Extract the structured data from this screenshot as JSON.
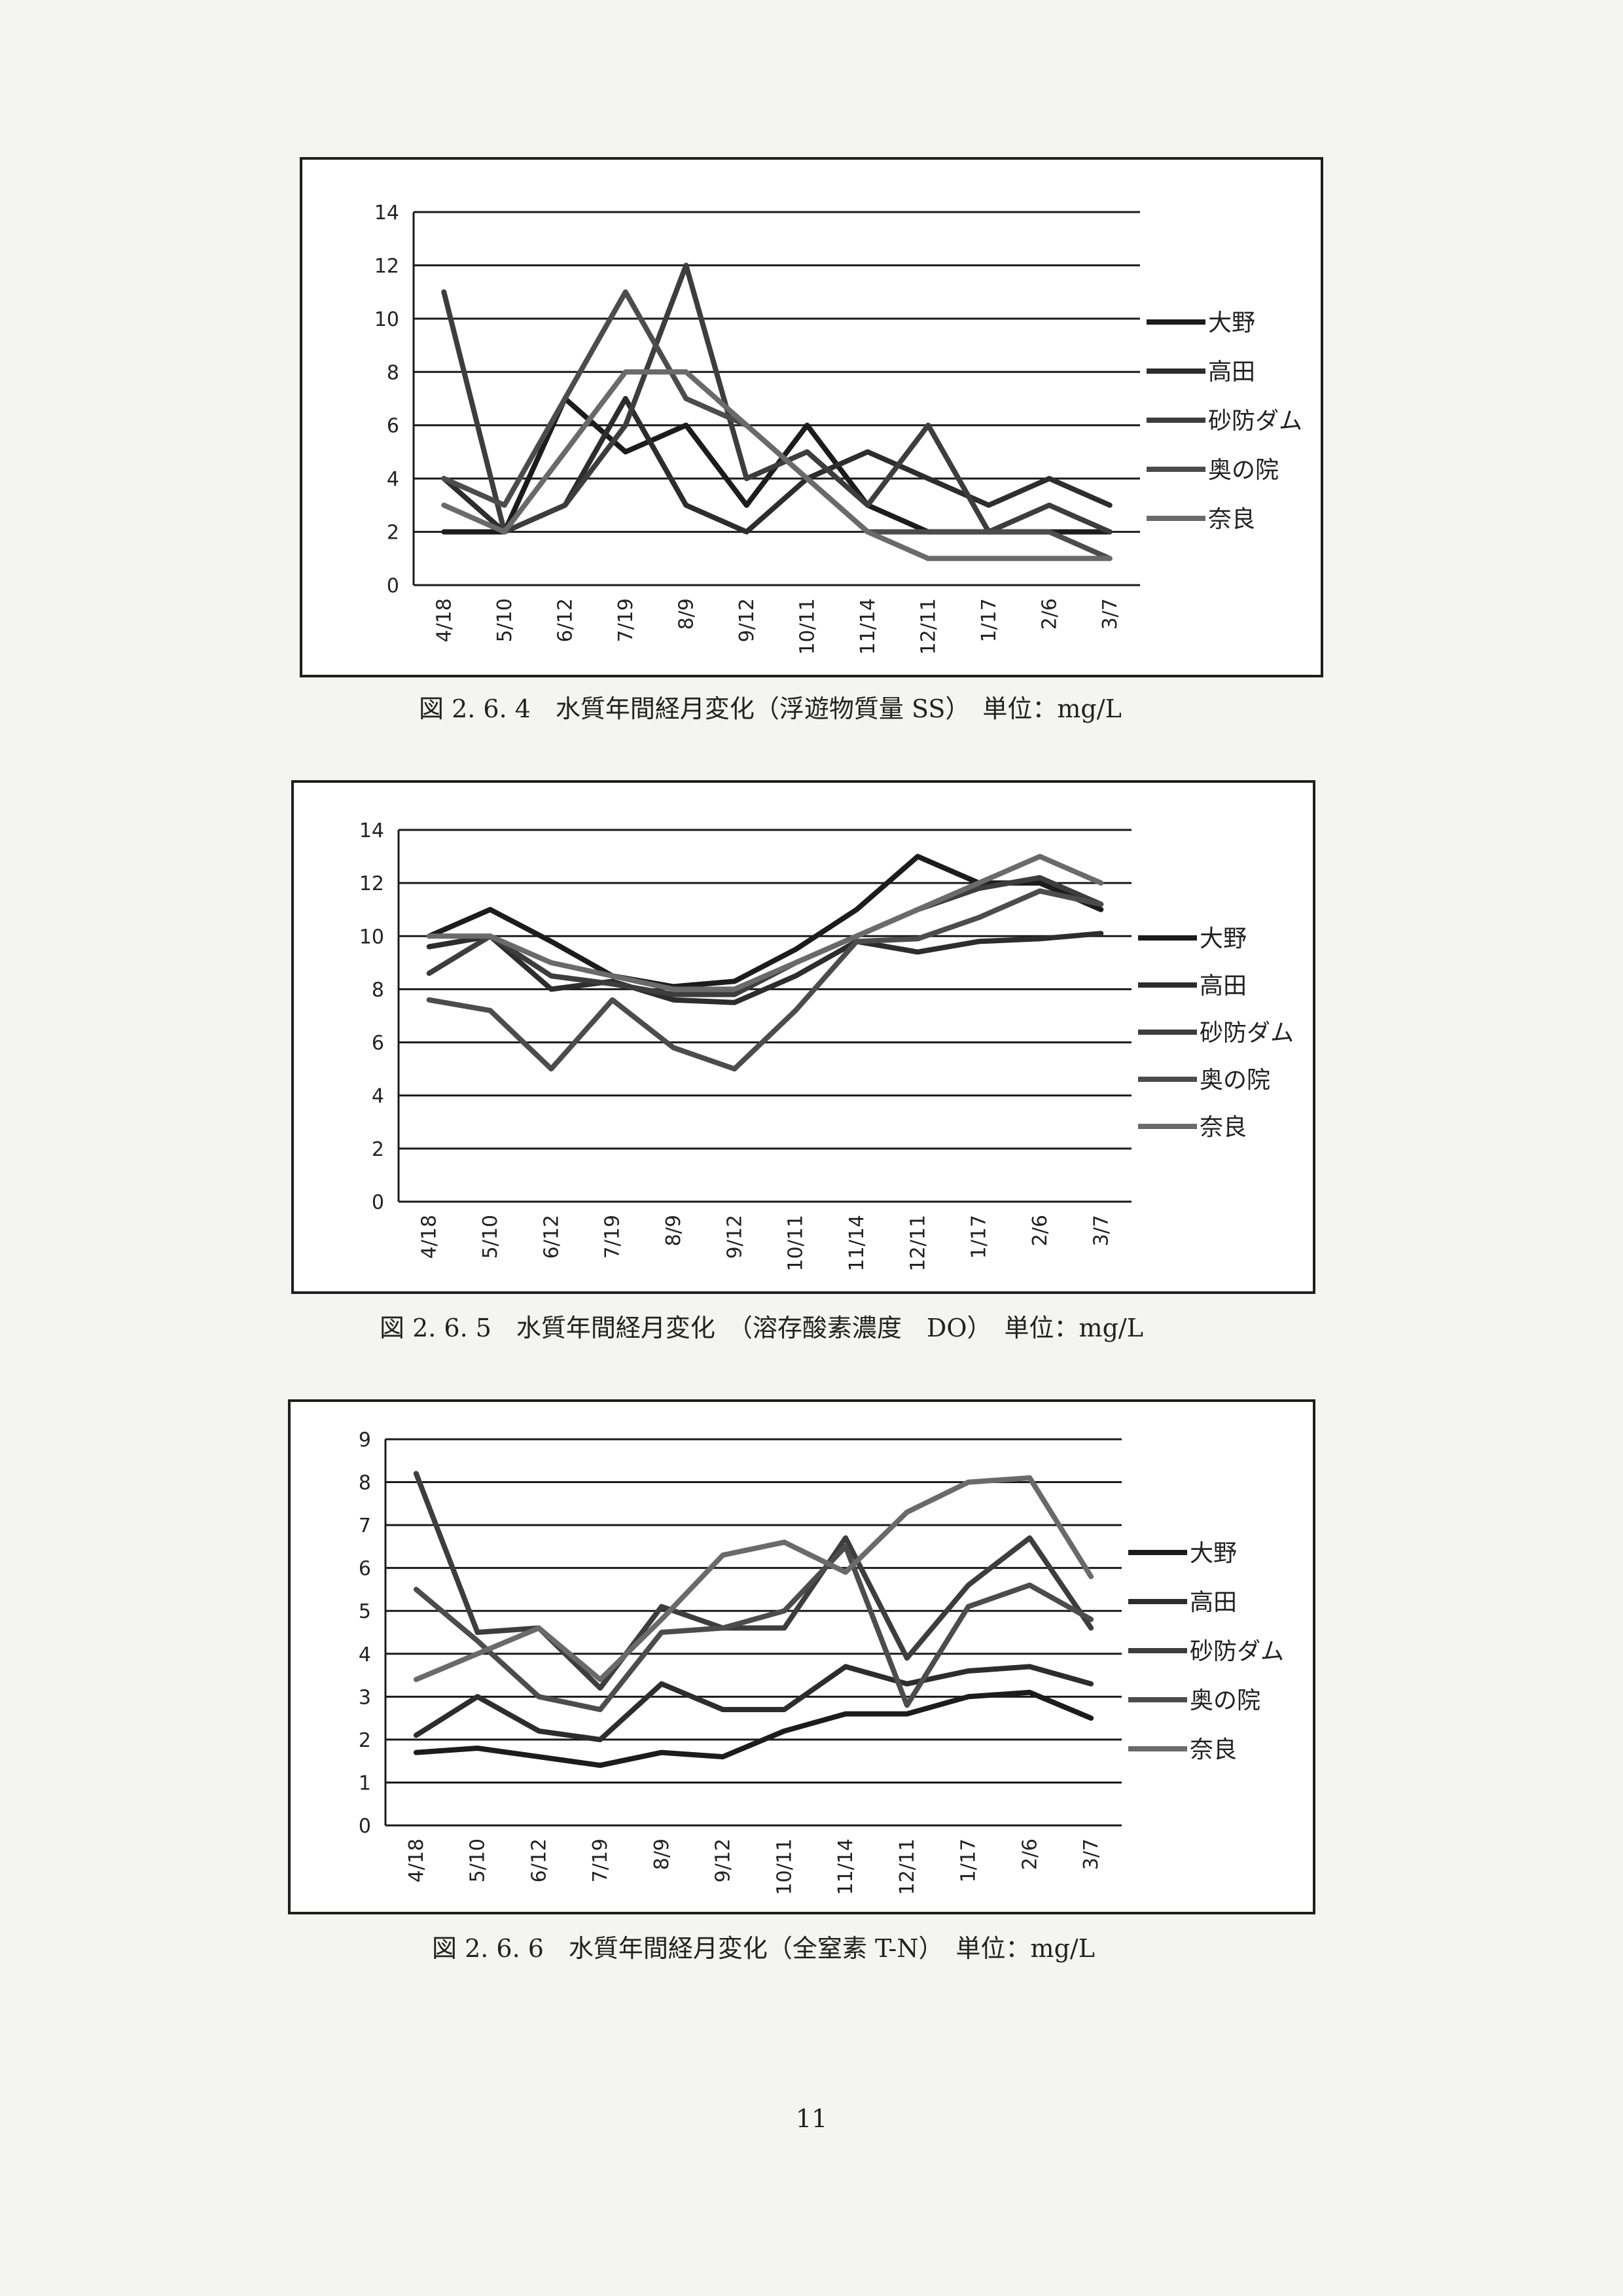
{
  "page_number": "11",
  "chart_data": [
    {
      "type": "line",
      "caption": "図 2. 6. 4　水質年間経月変化（浮遊物質量 SS）　単位：mg/L",
      "categories": [
        "4/18",
        "5/10",
        "6/12",
        "7/19",
        "8/9",
        "9/12",
        "10/11",
        "11/14",
        "12/11",
        "1/17",
        "2/6",
        "3/7"
      ],
      "yticks": [
        "0",
        "2",
        "4",
        "6",
        "8",
        "10",
        "12",
        "14"
      ],
      "ylim": [
        0,
        14
      ],
      "grid": "horizontal",
      "legend_position": "right",
      "series": [
        {
          "name": "大野",
          "color": "#1c1c1c",
          "values": [
            2,
            2,
            7,
            5,
            6,
            3,
            6,
            3,
            2,
            2,
            2,
            2
          ]
        },
        {
          "name": "高田",
          "color": "#2d2d2d",
          "values": [
            4,
            2,
            3,
            7,
            3,
            2,
            4,
            5,
            4,
            3,
            4,
            3
          ]
        },
        {
          "name": "砂防ダム",
          "color": "#3d3d3d",
          "values": [
            11,
            2,
            3,
            6,
            12,
            4,
            5,
            3,
            6,
            2,
            3,
            2
          ]
        },
        {
          "name": "奥の院",
          "color": "#4c4c4c",
          "values": [
            4,
            3,
            7,
            11,
            7,
            6,
            4,
            2,
            2,
            2,
            2,
            1
          ]
        },
        {
          "name": "奈良",
          "color": "#6a6a6a",
          "values": [
            3,
            2,
            5,
            8,
            8,
            6,
            4,
            2,
            1,
            1,
            1,
            1
          ]
        }
      ]
    },
    {
      "type": "line",
      "caption": "図 2. 6. 5　水質年間経月変化　（溶存酸素濃度　DO）　単位：mg/L",
      "categories": [
        "4/18",
        "5/10",
        "6/12",
        "7/19",
        "8/9",
        "9/12",
        "10/11",
        "11/14",
        "12/11",
        "1/17",
        "2/6",
        "3/7"
      ],
      "yticks": [
        "0",
        "2",
        "4",
        "6",
        "8",
        "10",
        "12",
        "14"
      ],
      "ylim": [
        0,
        14
      ],
      "grid": "horizontal",
      "legend_position": "right",
      "series": [
        {
          "name": "大野",
          "color": "#1c1c1c",
          "values": [
            10,
            11,
            9.8,
            8.5,
            8.1,
            8.3,
            9.5,
            11,
            13,
            12,
            12,
            11
          ]
        },
        {
          "name": "高田",
          "color": "#2d2d2d",
          "values": [
            9.6,
            10,
            8,
            8.3,
            7.6,
            7.5,
            8.5,
            9.8,
            9.4,
            9.8,
            9.9,
            10.1
          ]
        },
        {
          "name": "砂防ダム",
          "color": "#3d3d3d",
          "values": [
            8.6,
            10,
            8.5,
            8.2,
            7.8,
            7.8,
            9,
            10,
            11,
            11.8,
            12.2,
            11.2
          ]
        },
        {
          "name": "奥の院",
          "color": "#4c4c4c",
          "values": [
            7.6,
            7.2,
            5,
            7.6,
            5.8,
            5,
            7.2,
            9.8,
            9.9,
            10.7,
            11.7,
            11.2
          ]
        },
        {
          "name": "奈良",
          "color": "#6a6a6a",
          "values": [
            10,
            10,
            9,
            8.5,
            8,
            8,
            9,
            10,
            11,
            12,
            13,
            12
          ]
        }
      ]
    },
    {
      "type": "line",
      "caption": "図 2. 6. 6　水質年間経月変化（全窒素 T-N）　単位：mg/L",
      "categories": [
        "4/18",
        "5/10",
        "6/12",
        "7/19",
        "8/9",
        "9/12",
        "10/11",
        "11/14",
        "12/11",
        "1/17",
        "2/6",
        "3/7"
      ],
      "yticks": [
        "0",
        "1",
        "2",
        "3",
        "4",
        "5",
        "6",
        "7",
        "8",
        "9"
      ],
      "ylim": [
        0,
        9
      ],
      "grid": "horizontal",
      "legend_position": "right",
      "series": [
        {
          "name": "大野",
          "color": "#1c1c1c",
          "values": [
            1.7,
            1.8,
            1.6,
            1.4,
            1.7,
            1.6,
            2.2,
            2.6,
            2.6,
            3.0,
            3.1,
            2.5
          ]
        },
        {
          "name": "高田",
          "color": "#2d2d2d",
          "values": [
            2.1,
            3.0,
            2.2,
            2.0,
            3.3,
            2.7,
            2.7,
            3.7,
            3.3,
            3.6,
            3.7,
            3.3
          ]
        },
        {
          "name": "砂防ダム",
          "color": "#3d3d3d",
          "values": [
            8.2,
            4.5,
            4.6,
            3.2,
            5.1,
            4.6,
            4.6,
            6.7,
            3.9,
            5.6,
            6.7,
            4.6
          ]
        },
        {
          "name": "奥の院",
          "color": "#4c4c4c",
          "values": [
            5.5,
            4.3,
            3.0,
            2.7,
            4.5,
            4.6,
            5.0,
            6.5,
            2.8,
            5.1,
            5.6,
            4.8
          ]
        },
        {
          "name": "奈良",
          "color": "#6a6a6a",
          "values": [
            3.4,
            4.0,
            4.6,
            3.4,
            4.8,
            6.3,
            6.6,
            5.9,
            7.3,
            8.0,
            8.1,
            5.8
          ]
        }
      ]
    }
  ]
}
